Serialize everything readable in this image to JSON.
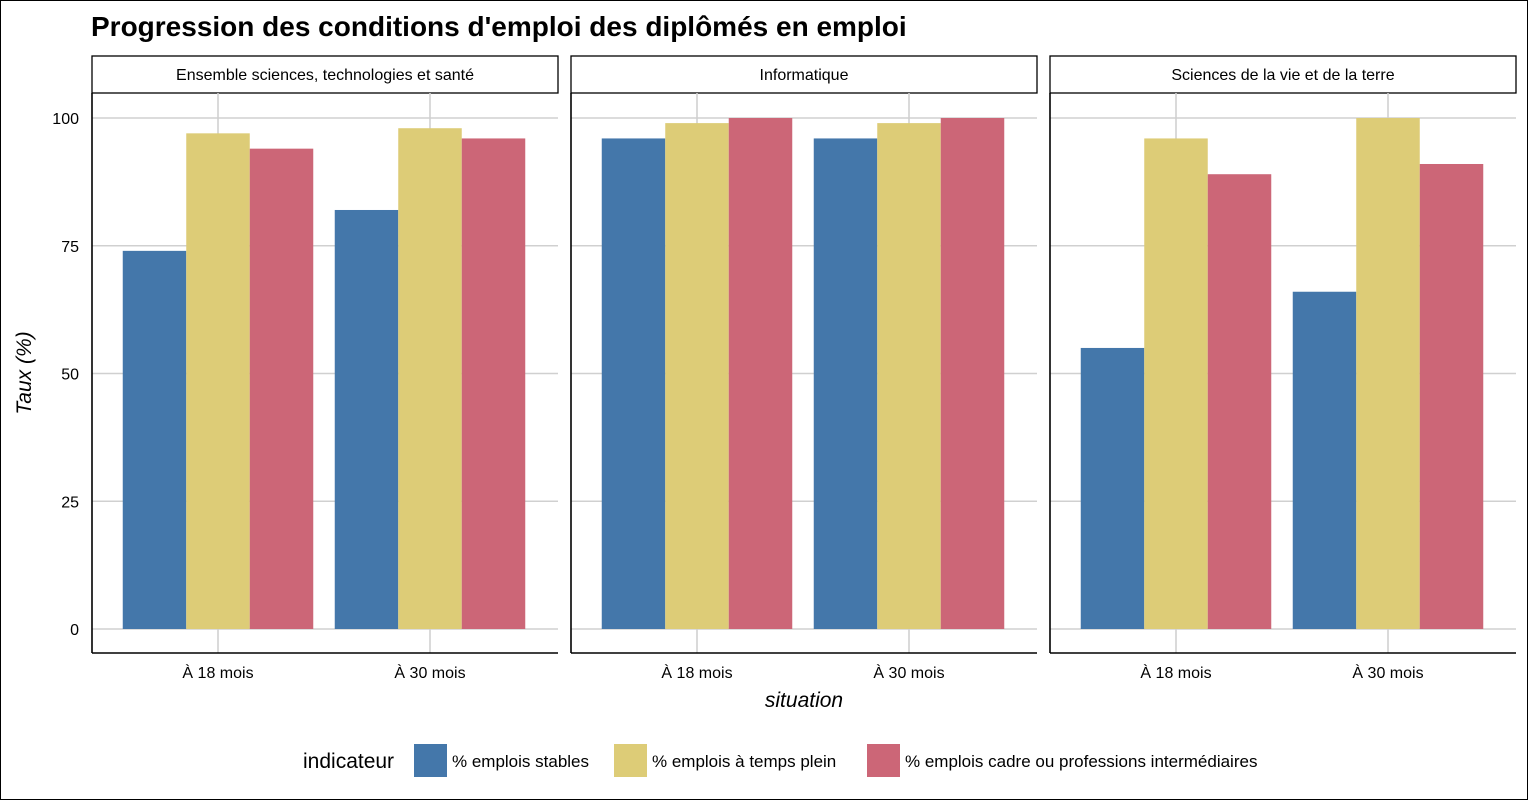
{
  "chart_data": {
    "type": "bar",
    "title": "Progression des conditions d'emploi des diplômés en emploi",
    "xlabel": "situation",
    "ylabel": "Taux (%)",
    "ylim": [
      0,
      100
    ],
    "yticks": [
      0,
      25,
      50,
      75,
      100
    ],
    "grid": true,
    "legend_position": "bottom",
    "legend_title": "indicateur",
    "categories": [
      "À 18 mois",
      "À 30 mois"
    ],
    "series_meta": [
      {
        "name": "% emplois stables",
        "color": "#4477AA"
      },
      {
        "name": "% emplois à temps plein",
        "color": "#DDCC77"
      },
      {
        "name": "% emplois cadre ou professions intermédiaires",
        "color": "#CC6677"
      }
    ],
    "facets": [
      {
        "label": "Ensemble sciences, technologies et santé",
        "series": [
          {
            "name": "% emplois stables",
            "values": [
              74,
              82
            ]
          },
          {
            "name": "% emplois à temps plein",
            "values": [
              97,
              98
            ]
          },
          {
            "name": "% emplois cadre ou professions intermédiaires",
            "values": [
              94,
              96
            ]
          }
        ]
      },
      {
        "label": "Informatique",
        "series": [
          {
            "name": "% emplois stables",
            "values": [
              96,
              96
            ]
          },
          {
            "name": "% emplois à temps plein",
            "values": [
              99,
              99
            ]
          },
          {
            "name": "% emplois cadre ou professions intermédiaires",
            "values": [
              100,
              100
            ]
          }
        ]
      },
      {
        "label": "Sciences de la vie et de la terre",
        "series": [
          {
            "name": "% emplois stables",
            "values": [
              55,
              66
            ]
          },
          {
            "name": "% emplois à temps plein",
            "values": [
              96,
              100
            ]
          },
          {
            "name": "% emplois cadre ou professions intermédiaires",
            "values": [
              89,
              91
            ]
          }
        ]
      }
    ]
  }
}
